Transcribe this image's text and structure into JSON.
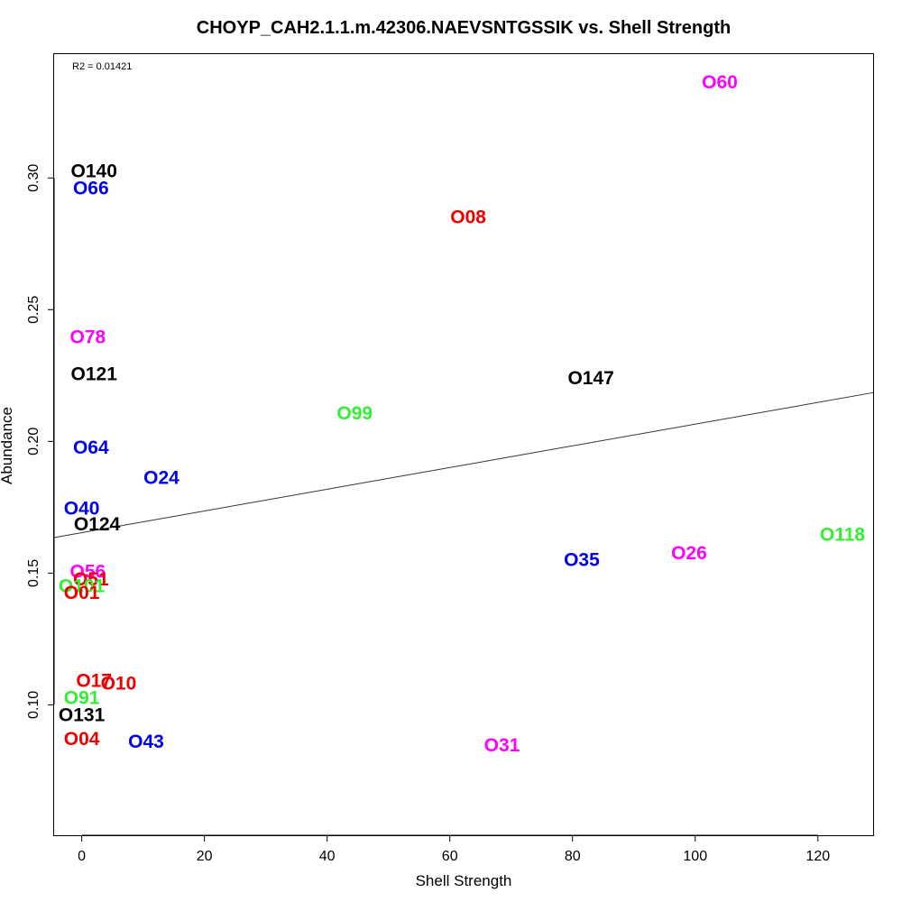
{
  "chart_data": {
    "type": "scatter",
    "title": "CHOYP_CAH2.1.1.m.42306.NAEVSNTGSSIK vs. Shell Strength",
    "xlabel": "Shell Strength",
    "ylabel": "Abundance",
    "xlim": [
      -4.5,
      129
    ],
    "ylim": [
      0.0505,
      0.347
    ],
    "xticks": [
      0,
      20,
      40,
      60,
      80,
      100,
      120
    ],
    "yticks": [
      0.1,
      0.15,
      0.2,
      0.25,
      0.3
    ],
    "xtick_labels": [
      "0",
      "20",
      "40",
      "60",
      "80",
      100,
      "120"
    ],
    "ytick_labels": [
      "0.10",
      "0.15",
      "0.20",
      "0.25",
      "0.30"
    ],
    "annotation": "R2 = 0.01421",
    "regression_line": {
      "x": [
        -4.5,
        129
      ],
      "y": [
        0.1635,
        0.2185
      ]
    },
    "points": [
      {
        "label": "O60",
        "x": 104,
        "y": 0.3363,
        "color": "#ff00ff"
      },
      {
        "label": "O140",
        "x": 2,
        "y": 0.3025,
        "color": "#000000"
      },
      {
        "label": "O66",
        "x": 1.5,
        "y": 0.296,
        "color": "#0000ee"
      },
      {
        "label": "O08",
        "x": 63,
        "y": 0.285,
        "color": "#ee0000"
      },
      {
        "label": "O78",
        "x": 1,
        "y": 0.2395,
        "color": "#ff00ff"
      },
      {
        "label": "O121",
        "x": 2,
        "y": 0.2255,
        "color": "#000000"
      },
      {
        "label": "O147",
        "x": 83,
        "y": 0.224,
        "color": "#000000"
      },
      {
        "label": "O99",
        "x": 44.5,
        "y": 0.2105,
        "color": "#33ee33"
      },
      {
        "label": "O64",
        "x": 1.5,
        "y": 0.1975,
        "color": "#0000ee"
      },
      {
        "label": "O24",
        "x": 13,
        "y": 0.186,
        "color": "#0000ee"
      },
      {
        "label": "O40",
        "x": 0,
        "y": 0.1745,
        "color": "#0000ee"
      },
      {
        "label": "O124",
        "x": 2.5,
        "y": 0.1685,
        "color": "#000000"
      },
      {
        "label": "O118",
        "x": 124,
        "y": 0.1645,
        "color": "#33ee33"
      },
      {
        "label": "O26",
        "x": 99,
        "y": 0.1575,
        "color": "#ff00ff"
      },
      {
        "label": "O35",
        "x": 81.5,
        "y": 0.155,
        "color": "#0000ee"
      },
      {
        "label": "O56",
        "x": 1,
        "y": 0.1505,
        "color": "#ff00ff"
      },
      {
        "label": "O51",
        "x": 1.5,
        "y": 0.1475,
        "color": "#ee0000"
      },
      {
        "label": "O101",
        "x": 0,
        "y": 0.145,
        "color": "#33ee33"
      },
      {
        "label": "O01",
        "x": 0,
        "y": 0.1425,
        "color": "#ee0000"
      },
      {
        "label": "O17",
        "x": 2,
        "y": 0.109,
        "color": "#ee0000"
      },
      {
        "label": "O10",
        "x": 6,
        "y": 0.108,
        "color": "#ee0000"
      },
      {
        "label": "O91",
        "x": 0,
        "y": 0.1025,
        "color": "#33ee33"
      },
      {
        "label": "O131",
        "x": 0,
        "y": 0.096,
        "color": "#000000"
      },
      {
        "label": "O04",
        "x": 0,
        "y": 0.087,
        "color": "#ee0000"
      },
      {
        "label": "O43",
        "x": 10.5,
        "y": 0.086,
        "color": "#0000ee"
      },
      {
        "label": "O31",
        "x": 68.5,
        "y": 0.0845,
        "color": "#ff00ff"
      }
    ]
  }
}
